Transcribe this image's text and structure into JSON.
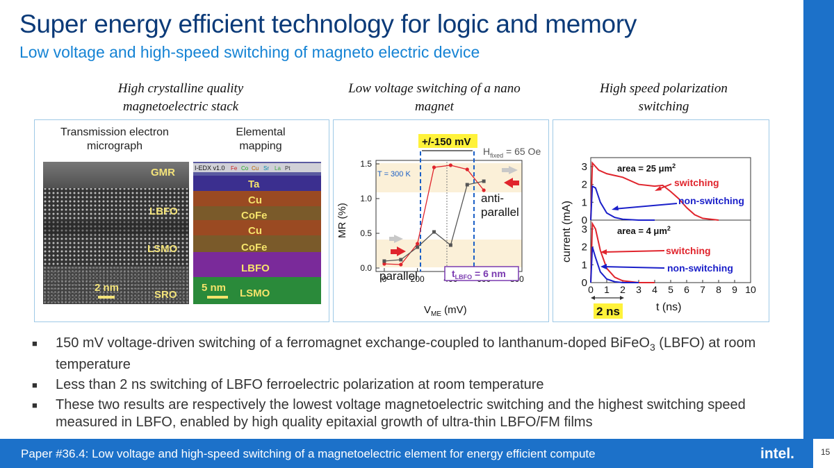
{
  "title": "Super energy efficient technology for logic and memory",
  "subtitle": "Low voltage and high-speed switching of magneto electric device",
  "columns": [
    {
      "heading_line1": "High crystalline quality",
      "heading_line2": "magnetoelectric stack"
    },
    {
      "heading_line1": "Low voltage switching of a nano",
      "heading_line2": "magnet"
    },
    {
      "heading_line1": "High speed polarization",
      "heading_line2": "switching"
    }
  ],
  "tem": {
    "caption_left_1": "Transmission electron",
    "caption_left_2": "micrograph",
    "caption_right_1": "Elemental",
    "caption_right_2": "mapping",
    "layers_left": [
      "GMR",
      "LBFO",
      "LSMO",
      "SRO"
    ],
    "scale_left": "2 nm",
    "edx_legend": [
      "I-EDX v1.0",
      "Fe",
      "Co",
      "Cu",
      "Sr",
      "La",
      "Pt"
    ],
    "layers_right": [
      "Ta",
      "Cu",
      "CoFe",
      "Cu",
      "CoFe",
      "LBFO",
      "LSMO"
    ],
    "scale_right": "5 nm",
    "colors": {
      "edx_ta": "#3b2f8f",
      "edx_cu": "#9a4a22",
      "edx_cofe": "#7a5a2a",
      "edx_lbfo": "#7a2a9a",
      "edx_lsmo": "#2a8a3a"
    }
  },
  "chart_mr": {
    "top_label": "+/-150 mV",
    "h_label": "H",
    "h_sub": "fixed",
    "h_value": " = 65 Oe",
    "temp_label": "T = 300 K",
    "label_anti": "anti-",
    "label_parallel_top": "parallel",
    "label_parallel": "parallel",
    "tlbfo_t": "t",
    "tlbfo_sub": "LBFO",
    "tlbfo_value": " = 6 nm",
    "ylabel": "MR (%)",
    "xlabel_v": "V",
    "xlabel_sub": "ME",
    "xlabel_unit": " (mV)",
    "yticks": [
      "1.5",
      "1.0",
      "0.5",
      "0.0"
    ],
    "xticks": [
      "0",
      "200",
      "400",
      "600",
      "800"
    ]
  },
  "chart_current": {
    "ylabel": "current (mA)",
    "xlabel": "t (ns)",
    "top_area": "area = 25 μm",
    "top_area_sup": "2",
    "bottom_area": "area = 4 μm",
    "bottom_area_sup": "2",
    "label_switching_top": "switching",
    "label_nonswitching_top": "non-switching",
    "label_switching_bottom": "switching",
    "label_nonswitching_bottom": "non-switching",
    "yticks_top": [
      "3",
      "2",
      "1",
      "0"
    ],
    "yticks_bottom": [
      "3",
      "2",
      "1",
      "0"
    ],
    "xticks": [
      "0",
      "1",
      "2",
      "3",
      "4",
      "5",
      "6",
      "7",
      "8",
      "9",
      "10"
    ],
    "marker_label": "2 ns"
  },
  "chart_data": [
    {
      "type": "line",
      "title": "",
      "xlabel": "V_ME (mV)",
      "ylabel": "MR (%)",
      "xlim": [
        -50,
        830
      ],
      "ylim": [
        -0.05,
        1.55
      ],
      "series": [
        {
          "x": [
            0,
            100,
            200,
            300,
            400,
            500,
            600
          ],
          "y": [
            0.06,
            0.05,
            0.35,
            1.45,
            1.48,
            1.42,
            1.12
          ]
        },
        {
          "x": [
            0,
            100,
            200,
            300,
            400,
            500,
            600
          ],
          "y": [
            0.1,
            0.12,
            0.3,
            0.52,
            0.33,
            1.2,
            1.25
          ]
        }
      ]
    },
    {
      "type": "line",
      "title": "",
      "xlabel": "t (ns)",
      "ylabel": "current (mA)",
      "xlim": [
        0,
        10
      ],
      "ylim": [
        0,
        3.5
      ],
      "series": [
        {
          "name": "switching",
          "x": [
            0,
            0.1,
            0.3,
            0.5,
            1,
            1.5,
            2,
            3,
            4,
            4.5,
            5,
            5.5,
            6,
            6.5,
            7,
            8
          ],
          "y": [
            0,
            3.2,
            3.0,
            2.8,
            2.6,
            2.5,
            2.4,
            2.0,
            1.9,
            1.95,
            1.6,
            1.2,
            0.7,
            0.3,
            0.1,
            0.0
          ]
        },
        {
          "name": "non-switching",
          "x": [
            0,
            0.1,
            0.3,
            0.6,
            1,
            1.5,
            2,
            3,
            4
          ],
          "y": [
            0,
            1.9,
            1.8,
            1.0,
            0.4,
            0.15,
            0.05,
            0.0,
            0.0
          ]
        }
      ]
    },
    {
      "type": "line",
      "title": "",
      "xlabel": "t (ns)",
      "ylabel": "current (mA)",
      "xlim": [
        0,
        10
      ],
      "ylim": [
        0,
        3.5
      ],
      "series": [
        {
          "name": "switching",
          "x": [
            0,
            0.1,
            0.3,
            0.6,
            1,
            1.5,
            2,
            3,
            4
          ],
          "y": [
            0,
            3.3,
            3.0,
            1.8,
            0.8,
            0.3,
            0.1,
            0.0,
            0.0
          ]
        },
        {
          "name": "non-switching",
          "x": [
            0,
            0.1,
            0.3,
            0.6,
            1,
            1.5,
            2,
            3
          ],
          "y": [
            0,
            2.0,
            1.4,
            0.6,
            0.2,
            0.05,
            0.0,
            0.0
          ]
        }
      ]
    }
  ],
  "colors": {
    "accent": "#1c71c9",
    "title": "#0b3a78",
    "subtitle": "#1583d4",
    "red": "#e0242c",
    "blue": "#1a1fc9"
  },
  "bullets": [
    {
      "pre": "150 mV voltage-driven switching of a ferromagnet exchange-coupled to lanthanum-doped BiFeO",
      "sub": "3",
      "post": " (LBFO) at room temperature"
    },
    {
      "pre": "Less than 2 ns switching of LBFO ferroelectric polarization at room temperature",
      "sub": "",
      "post": ""
    },
    {
      "pre": "These two results are respectively the lowest voltage magnetoelectric switching and the highest switching speed measured in LBFO, enabled by high quality epitaxial growth of ultra-thin LBFO/FM films",
      "sub": "",
      "post": ""
    }
  ],
  "footer": {
    "text": "Paper #36.4: Low voltage and high-speed switching of a magnetoelectric element for energy efficient compute",
    "logo": "intel.",
    "page": "15"
  }
}
